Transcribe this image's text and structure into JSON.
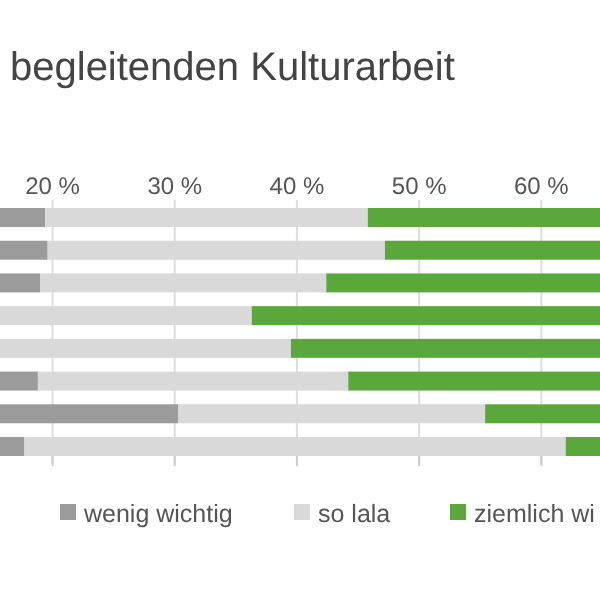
{
  "chart_data": {
    "type": "bar",
    "orientation": "horizontal",
    "title": "begleitenden Kulturarbeit",
    "categories": [
      null,
      null,
      null,
      null,
      null,
      null,
      null,
      null
    ],
    "series": [
      {
        "name": "wenig wichtig",
        "color": "#9b9b9b",
        "base": [
          15.7,
          15.7,
          15.7,
          null,
          null,
          15.7,
          15.7,
          15.7
        ],
        "values": [
          3.7,
          3.9,
          3.3,
          null,
          null,
          3.1,
          14.6,
          2.0
        ]
      },
      {
        "name": "so lala",
        "color": "#d9d9d9",
        "base": [
          19.4,
          19.6,
          19.0,
          15.7,
          15.7,
          18.8,
          30.3,
          17.7
        ],
        "values": [
          26.4,
          27.6,
          23.4,
          20.6,
          23.8,
          25.4,
          25.1,
          44.3
        ]
      },
      {
        "name": "ziemlich wi",
        "color": "#5aa83c",
        "base": [
          45.8,
          47.2,
          42.4,
          36.3,
          39.5,
          44.2,
          55.4,
          62.0
        ],
        "values": [
          19.0,
          17.6,
          22.4,
          28.5,
          25.3,
          20.6,
          9.4,
          2.8
        ]
      }
    ],
    "xlim": [
      15.7,
      64.8
    ],
    "xticks": [
      {
        "value": 20,
        "label": "20 %"
      },
      {
        "value": 30,
        "label": "30 %"
      },
      {
        "value": 40,
        "label": "40 %"
      },
      {
        "value": 50,
        "label": "50 %"
      },
      {
        "value": 60,
        "label": "60 %"
      }
    ],
    "grid": "x",
    "legend": "bottom"
  }
}
